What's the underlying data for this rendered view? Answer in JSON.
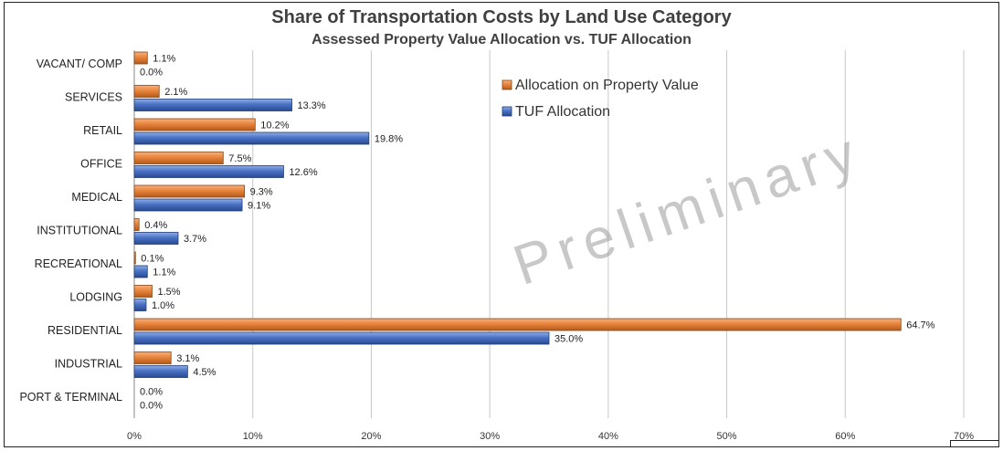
{
  "chart_data": {
    "type": "bar",
    "orientation": "horizontal",
    "title": "Share of Transportation Costs by Land Use Category",
    "subtitle": "Assessed Property Value Allocation vs. TUF Allocation",
    "categories": [
      "VACANT/ COMP",
      "SERVICES",
      "RETAIL",
      "OFFICE",
      "MEDICAL",
      "INSTITUTIONAL",
      "RECREATIONAL",
      "LODGING",
      "RESIDENTIAL",
      "INDUSTRIAL",
      "PORT & TERMINAL"
    ],
    "series": [
      {
        "name": "Allocation on Property Value",
        "color": "#E8843C",
        "values": [
          1.1,
          2.1,
          10.2,
          7.5,
          9.3,
          0.4,
          0.1,
          1.5,
          64.7,
          3.1,
          0.0
        ],
        "labels": [
          "1.1%",
          "2.1%",
          "10.2%",
          "7.5%",
          "9.3%",
          "0.4%",
          "0.1%",
          "1.5%",
          "64.7%",
          "3.1%",
          "0.0%"
        ]
      },
      {
        "name": "TUF Allocation",
        "color": "#4A72C4",
        "values": [
          0.0,
          13.3,
          19.8,
          12.6,
          9.1,
          3.7,
          1.1,
          1.0,
          35.0,
          4.5,
          0.0
        ],
        "labels": [
          "0.0%",
          "13.3%",
          "19.8%",
          "12.6%",
          "9.1%",
          "3.7%",
          "1.1%",
          "1.0%",
          "35.0%",
          "4.5%",
          "0.0%"
        ]
      }
    ],
    "xlim": [
      0,
      70
    ],
    "xticks": [
      0,
      10,
      20,
      30,
      40,
      50,
      60,
      70
    ],
    "xtick_labels": [
      "0%",
      "10%",
      "20%",
      "30%",
      "40%",
      "50%",
      "60%",
      "70%"
    ],
    "grid": true,
    "legend_placement": "top-center",
    "watermark": "Preliminary"
  }
}
